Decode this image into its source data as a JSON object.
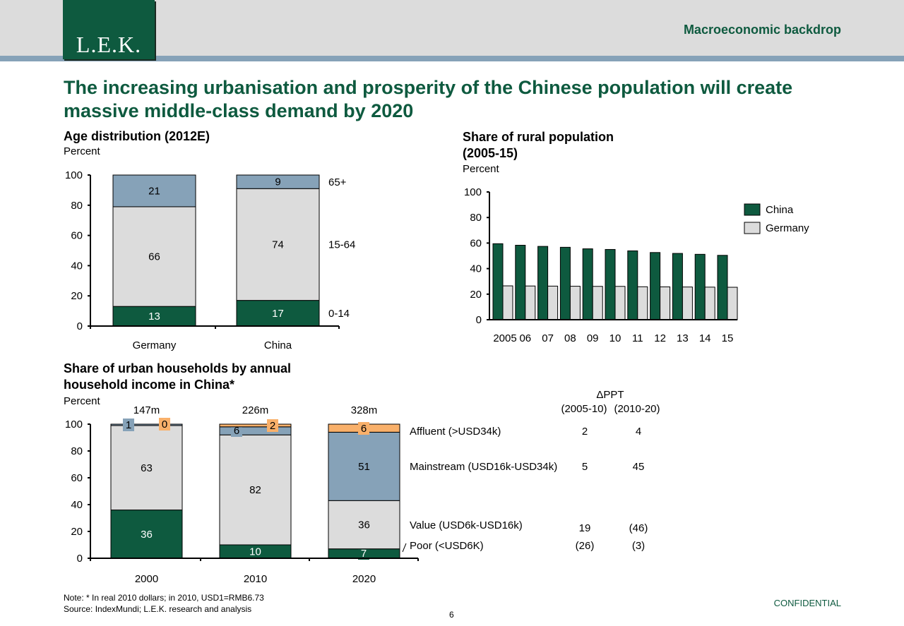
{
  "header": {
    "logo": "L.E.K.",
    "section_title": "Macroeconomic backdrop"
  },
  "title": "The increasing urbanisation and prosperity of the Chinese population will create massive middle-class demand by 2020",
  "colors": {
    "green": "#0e5a3f",
    "light": "#dcdcdc",
    "blue": "#86a2b8",
    "orange": "#f9b06a"
  },
  "chart_data": [
    {
      "type": "bar",
      "stacked": true,
      "title": "Age distribution (2012E)",
      "unit": "Percent",
      "categories": [
        "Germany",
        "China"
      ],
      "ylim": [
        0,
        100
      ],
      "yticks": [
        "0",
        "20",
        "40",
        "60",
        "80",
        "100"
      ],
      "series": [
        {
          "name": "0-14",
          "values": [
            13,
            17
          ],
          "color": "#0e5a3f"
        },
        {
          "name": "15-64",
          "values": [
            66,
            74
          ],
          "color": "#dcdcdc"
        },
        {
          "name": "65+",
          "values": [
            21,
            9
          ],
          "color": "#86a2b8"
        }
      ]
    },
    {
      "type": "bar",
      "title": "Share of rural population (2005-15)",
      "unit": "Percent",
      "categories": [
        "2005",
        "06",
        "07",
        "08",
        "09",
        "10",
        "11",
        "12",
        "13",
        "14",
        "15"
      ],
      "ylim": [
        0,
        100
      ],
      "yticks": [
        "0",
        "20",
        "40",
        "60",
        "80",
        "100"
      ],
      "legend_position": "right",
      "series": [
        {
          "name": "China",
          "values": [
            59.5,
            58.3,
            57.4,
            56.7,
            55.5,
            55.0,
            53.9,
            52.6,
            51.9,
            51.2,
            50.4
          ],
          "color": "#0e5a3f"
        },
        {
          "name": "Germany",
          "values": [
            26.5,
            26.4,
            26.3,
            26.2,
            26.1,
            26.1,
            25.8,
            25.7,
            25.6,
            25.5,
            25.4
          ],
          "color": "#dcdcdc"
        }
      ]
    },
    {
      "type": "bar",
      "stacked": true,
      "title": "Share of urban households by annual household income in China*",
      "unit": "Percent",
      "categories": [
        "2000",
        "2010",
        "2020"
      ],
      "totals": [
        "147m",
        "226m",
        "328m"
      ],
      "ylim": [
        0,
        100
      ],
      "yticks": [
        "0",
        "20",
        "40",
        "60",
        "80",
        "100"
      ],
      "series": [
        {
          "name": "Poor (<USD6K)",
          "values": [
            36,
            10,
            7
          ],
          "color": "#0e5a3f"
        },
        {
          "name": "Value (USD6k-USD16k)",
          "values": [
            63,
            82,
            36
          ],
          "color": "#dcdcdc"
        },
        {
          "name": "Mainstream (USD16k-USD34k)",
          "values": [
            1,
            6,
            51
          ],
          "color": "#86a2b8"
        },
        {
          "name": "Affluent (>USD34k)",
          "values": [
            0,
            2,
            6
          ],
          "color": "#f9b06a"
        }
      ],
      "delta_table": {
        "header": "ΔPPT",
        "columns": [
          "(2005-10)",
          "(2010-20)"
        ],
        "rows": [
          {
            "label": "Affluent (>USD34k)",
            "values": [
              "2",
              "4"
            ]
          },
          {
            "label": "Mainstream (USD16k-USD34k)",
            "values": [
              "5",
              "45"
            ]
          },
          {
            "label": "Value (USD6k-USD16k)",
            "values": [
              "19",
              "(46)"
            ]
          },
          {
            "label": "Poor (<USD6K)",
            "values": [
              "(26)",
              "(3)"
            ]
          }
        ]
      }
    }
  ],
  "footer": {
    "note": "Note: * In real 2010 dollars; in 2010, USD1=RMB6.73",
    "source": "Source: IndexMundi; L.E.K. research and analysis",
    "page": "6",
    "confidential": "CONFIDENTIAL"
  }
}
